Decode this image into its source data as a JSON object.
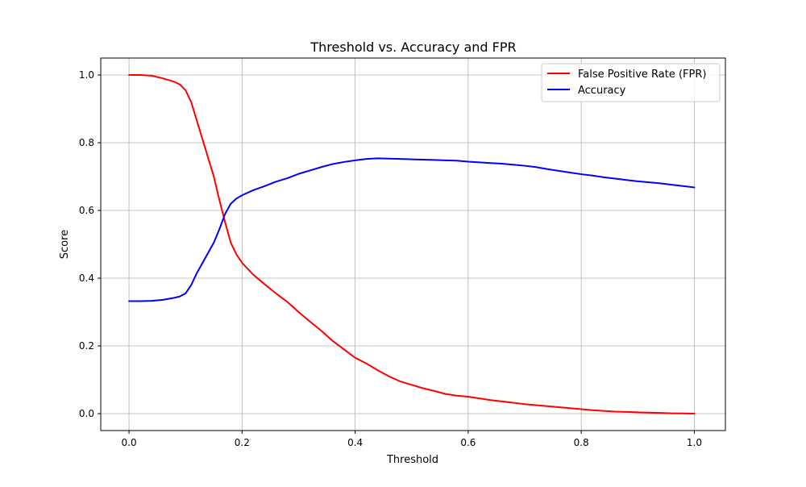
{
  "chart_data": {
    "type": "line",
    "title": "Threshold vs. Accuracy and FPR",
    "xlabel": "Threshold",
    "ylabel": "Score",
    "xlim": [
      -0.05,
      1.055
    ],
    "ylim": [
      -0.05,
      1.05
    ],
    "xticks": [
      0.0,
      0.2,
      0.4,
      0.6,
      0.8,
      1.0
    ],
    "xtick_labels": [
      "0.0",
      "0.2",
      "0.4",
      "0.6",
      "0.8",
      "1.0"
    ],
    "yticks": [
      0.0,
      0.2,
      0.4,
      0.6,
      0.8,
      1.0
    ],
    "ytick_labels": [
      "0.0",
      "0.2",
      "0.4",
      "0.6",
      "0.8",
      "1.0"
    ],
    "grid": true,
    "legend_position": "top-right",
    "series": [
      {
        "name": "False Positive Rate (FPR)",
        "color": "#ff0000",
        "x": [
          0.0,
          0.02,
          0.04,
          0.06,
          0.08,
          0.09,
          0.1,
          0.11,
          0.12,
          0.13,
          0.14,
          0.15,
          0.16,
          0.17,
          0.18,
          0.19,
          0.2,
          0.22,
          0.24,
          0.26,
          0.28,
          0.3,
          0.32,
          0.34,
          0.36,
          0.38,
          0.4,
          0.42,
          0.44,
          0.46,
          0.48,
          0.5,
          0.52,
          0.54,
          0.56,
          0.58,
          0.6,
          0.62,
          0.64,
          0.66,
          0.68,
          0.7,
          0.72,
          0.74,
          0.76,
          0.78,
          0.8,
          0.82,
          0.84,
          0.86,
          0.88,
          0.9,
          0.92,
          0.94,
          0.96,
          0.98,
          1.0
        ],
        "y": [
          1.0,
          1.0,
          0.998,
          0.99,
          0.98,
          0.972,
          0.955,
          0.92,
          0.865,
          0.81,
          0.755,
          0.7,
          0.63,
          0.565,
          0.505,
          0.47,
          0.445,
          0.41,
          0.382,
          0.355,
          0.33,
          0.3,
          0.272,
          0.245,
          0.215,
          0.19,
          0.165,
          0.148,
          0.128,
          0.11,
          0.095,
          0.085,
          0.075,
          0.067,
          0.058,
          0.053,
          0.05,
          0.045,
          0.04,
          0.036,
          0.032,
          0.028,
          0.025,
          0.022,
          0.019,
          0.016,
          0.013,
          0.01,
          0.008,
          0.006,
          0.005,
          0.004,
          0.003,
          0.002,
          0.001,
          0.0005,
          0.0
        ]
      },
      {
        "name": "Accuracy",
        "color": "#0000ff",
        "x": [
          0.0,
          0.02,
          0.04,
          0.06,
          0.08,
          0.09,
          0.1,
          0.11,
          0.12,
          0.13,
          0.14,
          0.15,
          0.16,
          0.17,
          0.18,
          0.19,
          0.2,
          0.22,
          0.24,
          0.26,
          0.28,
          0.3,
          0.32,
          0.34,
          0.36,
          0.38,
          0.4,
          0.42,
          0.44,
          0.46,
          0.48,
          0.5,
          0.52,
          0.54,
          0.56,
          0.58,
          0.6,
          0.62,
          0.64,
          0.66,
          0.68,
          0.7,
          0.72,
          0.74,
          0.76,
          0.78,
          0.8,
          0.82,
          0.84,
          0.86,
          0.88,
          0.9,
          0.92,
          0.94,
          0.96,
          0.98,
          1.0
        ],
        "y": [
          0.332,
          0.332,
          0.333,
          0.336,
          0.342,
          0.346,
          0.355,
          0.38,
          0.415,
          0.445,
          0.475,
          0.505,
          0.545,
          0.59,
          0.62,
          0.635,
          0.645,
          0.66,
          0.672,
          0.685,
          0.695,
          0.708,
          0.718,
          0.728,
          0.737,
          0.743,
          0.748,
          0.752,
          0.754,
          0.753,
          0.752,
          0.751,
          0.75,
          0.749,
          0.748,
          0.747,
          0.744,
          0.742,
          0.74,
          0.738,
          0.735,
          0.732,
          0.728,
          0.722,
          0.717,
          0.712,
          0.707,
          0.703,
          0.698,
          0.694,
          0.69,
          0.686,
          0.683,
          0.68,
          0.676,
          0.672,
          0.668
        ]
      }
    ]
  }
}
